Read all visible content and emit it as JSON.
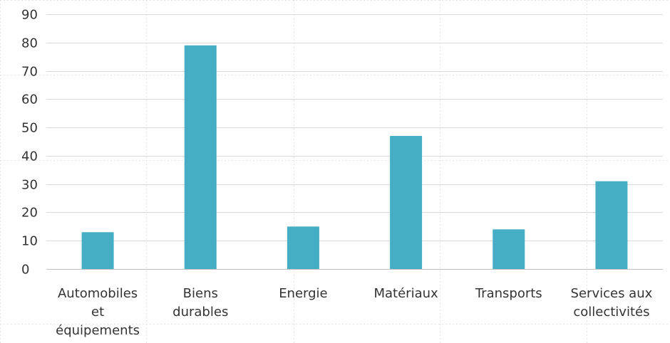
{
  "chart_data": {
    "type": "bar",
    "categories": [
      "Automobiles et équipements",
      "Biens durables",
      "Energie",
      "Matériaux",
      "Transports",
      "Services aux collectivités"
    ],
    "category_label_lines": [
      [
        "Automobiles",
        "et",
        "équipements"
      ],
      [
        "Biens",
        "durables"
      ],
      [
        "Energie"
      ],
      [
        "Matériaux"
      ],
      [
        "Transports"
      ],
      [
        "Services aux",
        "collectivités"
      ]
    ],
    "values": [
      13,
      79,
      15,
      47,
      14,
      31
    ],
    "ylim": [
      0,
      90
    ],
    "yticks": [
      0,
      10,
      20,
      30,
      40,
      50,
      60,
      70,
      80,
      90
    ],
    "bar_color": "#45ADC4",
    "grid": true,
    "grid_color": "#d9d9d9",
    "title": "",
    "xlabel": "",
    "ylabel": ""
  }
}
